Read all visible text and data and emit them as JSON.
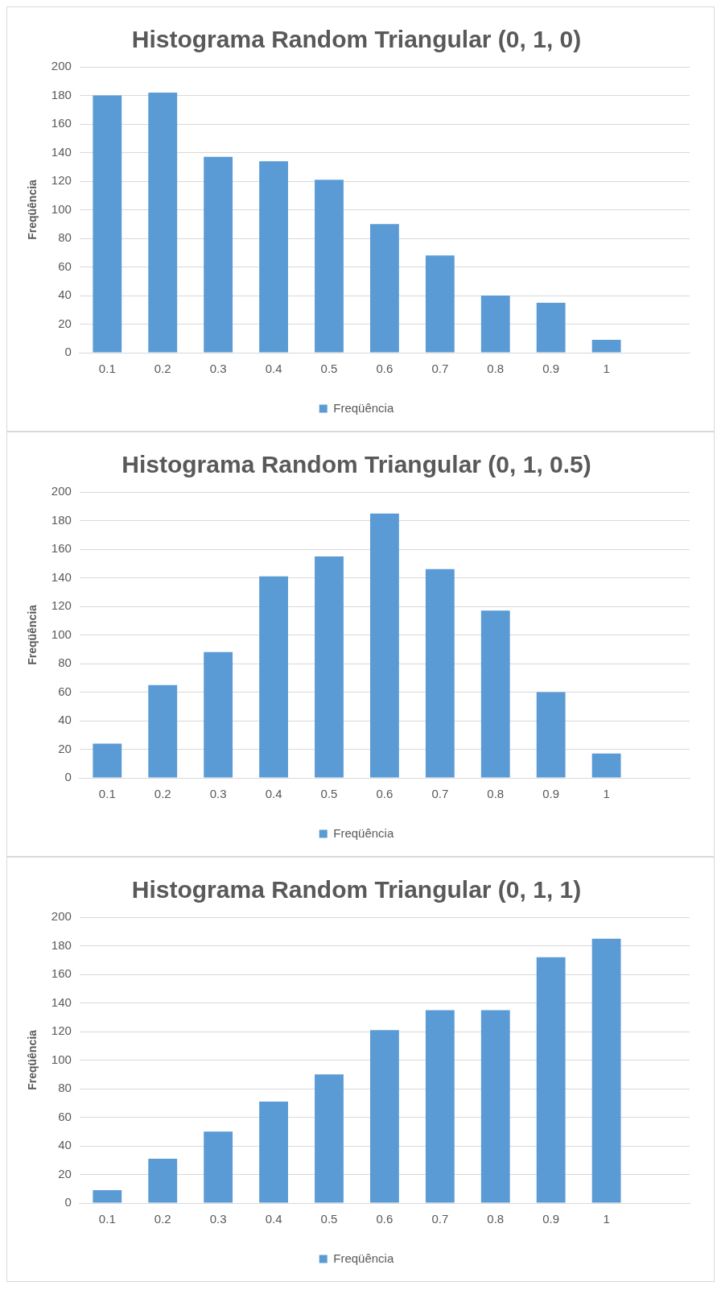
{
  "chart_data": [
    {
      "type": "bar",
      "title": "Histograma Random Triangular (0, 1, 0)",
      "ylabel": "Freqüência",
      "categories": [
        "0.1",
        "0.2",
        "0.3",
        "0.4",
        "0.5",
        "0.6",
        "0.7",
        "0.8",
        "0.9",
        "1",
        null
      ],
      "series": [
        {
          "name": "Freqüência",
          "color": "#5b9bd5",
          "values": [
            180,
            182,
            137,
            134,
            121,
            90,
            68,
            40,
            35,
            9,
            0
          ]
        }
      ],
      "ylim": [
        0,
        200
      ],
      "yticks": [
        0,
        20,
        40,
        60,
        80,
        100,
        120,
        140,
        160,
        180,
        200
      ],
      "grid": "y",
      "legend": "bottom"
    },
    {
      "type": "bar",
      "title": "Histograma Random Triangular (0, 1, 0.5)",
      "ylabel": "Freqüência",
      "categories": [
        "0.1",
        "0.2",
        "0.3",
        "0.4",
        "0.5",
        "0.6",
        "0.7",
        "0.8",
        "0.9",
        "1",
        null
      ],
      "series": [
        {
          "name": "Freqüência",
          "color": "#5b9bd5",
          "values": [
            24,
            65,
            88,
            141,
            155,
            185,
            146,
            117,
            60,
            17,
            0
          ]
        }
      ],
      "ylim": [
        0,
        200
      ],
      "yticks": [
        0,
        20,
        40,
        60,
        80,
        100,
        120,
        140,
        160,
        180,
        200
      ],
      "grid": "y",
      "legend": "bottom"
    },
    {
      "type": "bar",
      "title": "Histograma Random Triangular (0, 1, 1)",
      "ylabel": "Freqüência",
      "categories": [
        "0.1",
        "0.2",
        "0.3",
        "0.4",
        "0.5",
        "0.6",
        "0.7",
        "0.8",
        "0.9",
        "1",
        null
      ],
      "series": [
        {
          "name": "Freqüência",
          "color": "#5b9bd5",
          "values": [
            9,
            31,
            50,
            71,
            90,
            121,
            135,
            135,
            172,
            185,
            0
          ]
        }
      ],
      "ylim": [
        0,
        200
      ],
      "yticks": [
        0,
        20,
        40,
        60,
        80,
        100,
        120,
        140,
        160,
        180,
        200
      ],
      "grid": "y",
      "legend": "bottom"
    }
  ]
}
